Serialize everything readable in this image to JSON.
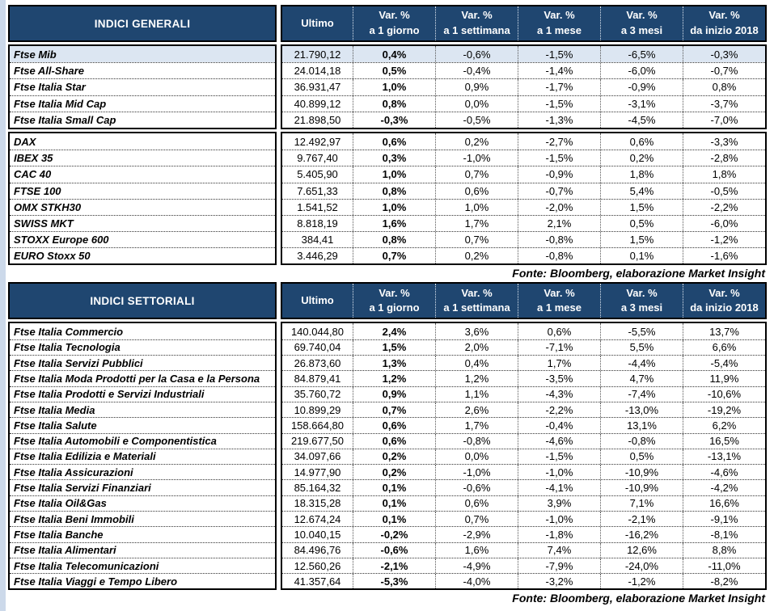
{
  "page": {
    "background": "#ffffff",
    "left_strip_color": "#ccd9ea"
  },
  "colors": {
    "header_bg": "#1f4670",
    "header_text": "#ffffff",
    "highlight_row_bg": "#dce6f2",
    "border": "#000000"
  },
  "tables": [
    {
      "key": "generali",
      "title": "INDICI GENERALI",
      "columns": [
        {
          "line1": "Ultimo",
          "line2": ""
        },
        {
          "line1": "Var. %",
          "line2": "a 1 giorno"
        },
        {
          "line1": "Var. %",
          "line2": "a 1 settimana"
        },
        {
          "line1": "Var. %",
          "line2": "a 1 mese"
        },
        {
          "line1": "Var. %",
          "line2": "a 3 mesi"
        },
        {
          "line1": "Var. %",
          "line2": "da inizio 2018"
        }
      ],
      "sections": [
        {
          "rows": [
            {
              "label": "Ftse Mib",
              "highlight": true,
              "values": [
                "21.790,12",
                "0,4%",
                "-0,6%",
                "-1,5%",
                "-6,5%",
                "-0,3%"
              ]
            },
            {
              "label": "Ftse All-Share",
              "values": [
                "24.014,18",
                "0,5%",
                "-0,4%",
                "-1,4%",
                "-6,0%",
                "-0,7%"
              ]
            },
            {
              "label": "Ftse Italia Star",
              "values": [
                "36.931,47",
                "1,0%",
                "0,9%",
                "-1,7%",
                "-0,9%",
                "0,8%"
              ]
            },
            {
              "label": "Ftse Italia Mid Cap",
              "values": [
                "40.899,12",
                "0,8%",
                "0,0%",
                "-1,5%",
                "-3,1%",
                "-3,7%"
              ]
            },
            {
              "label": "Ftse Italia Small Cap",
              "values": [
                "21.898,50",
                "-0,3%",
                "-0,5%",
                "-1,3%",
                "-4,5%",
                "-7,0%"
              ]
            }
          ]
        },
        {
          "rows": [
            {
              "label": "DAX",
              "values": [
                "12.492,97",
                "0,6%",
                "0,2%",
                "-2,7%",
                "0,6%",
                "-3,3%"
              ]
            },
            {
              "label": "IBEX 35",
              "values": [
                "9.767,40",
                "0,3%",
                "-1,0%",
                "-1,5%",
                "0,2%",
                "-2,8%"
              ]
            },
            {
              "label": "CAC 40",
              "values": [
                "5.405,90",
                "1,0%",
                "0,7%",
                "-0,9%",
                "1,8%",
                "1,8%"
              ]
            },
            {
              "label": "FTSE 100",
              "values": [
                "7.651,33",
                "0,8%",
                "0,6%",
                "-0,7%",
                "5,4%",
                "-0,5%"
              ]
            },
            {
              "label": "OMX STKH30",
              "values": [
                "1.541,52",
                "1,0%",
                "1,0%",
                "-2,0%",
                "1,5%",
                "-2,2%"
              ]
            },
            {
              "label": "SWISS MKT",
              "values": [
                "8.818,19",
                "1,6%",
                "1,7%",
                "2,1%",
                "0,5%",
                "-6,0%"
              ]
            },
            {
              "label": "STOXX Europe 600",
              "values": [
                "384,41",
                "0,8%",
                "0,7%",
                "-0,8%",
                "1,5%",
                "-1,2%"
              ]
            },
            {
              "label": "EURO Stoxx 50",
              "values": [
                "3.446,29",
                "0,7%",
                "0,2%",
                "-0,8%",
                "0,1%",
                "-1,6%"
              ]
            }
          ]
        }
      ],
      "fonte": "Fonte: Bloomberg, elaborazione Market Insight"
    },
    {
      "key": "settoriali",
      "title": "INDICI SETTORIALI",
      "columns": [
        {
          "line1": "Ultimo",
          "line2": ""
        },
        {
          "line1": "Var. %",
          "line2": "a 1 giorno"
        },
        {
          "line1": "Var. %",
          "line2": "a 1 settimana"
        },
        {
          "line1": "Var. %",
          "line2": "a 1 mese"
        },
        {
          "line1": "Var. %",
          "line2": "a 3 mesi"
        },
        {
          "line1": "Var. %",
          "line2": "da inizio 2018"
        }
      ],
      "sections": [
        {
          "rows": [
            {
              "label": "Ftse Italia Commercio",
              "values": [
                "140.044,80",
                "2,4%",
                "3,6%",
                "0,6%",
                "-5,5%",
                "13,7%"
              ]
            },
            {
              "label": "Ftse Italia Tecnologia",
              "values": [
                "69.740,04",
                "1,5%",
                "2,0%",
                "-7,1%",
                "5,5%",
                "6,6%"
              ]
            },
            {
              "label": "Ftse Italia Servizi Pubblici",
              "values": [
                "26.873,60",
                "1,3%",
                "0,4%",
                "1,7%",
                "-4,4%",
                "-5,4%"
              ]
            },
            {
              "label": "Ftse Italia Moda Prodotti per la Casa e la Persona",
              "values": [
                "84.879,41",
                "1,2%",
                "1,2%",
                "-3,5%",
                "4,7%",
                "11,9%"
              ]
            },
            {
              "label": "Ftse Italia Prodotti e Servizi Industriali",
              "values": [
                "35.760,72",
                "0,9%",
                "1,1%",
                "-4,3%",
                "-7,4%",
                "-10,6%"
              ]
            },
            {
              "label": "Ftse Italia Media",
              "values": [
                "10.899,29",
                "0,7%",
                "2,6%",
                "-2,2%",
                "-13,0%",
                "-19,2%"
              ]
            },
            {
              "label": "Ftse Italia Salute",
              "values": [
                "158.664,80",
                "0,6%",
                "1,7%",
                "-0,4%",
                "13,1%",
                "6,2%"
              ]
            },
            {
              "label": "Ftse Italia Automobili e Componentistica",
              "values": [
                "219.677,50",
                "0,6%",
                "-0,8%",
                "-4,6%",
                "-0,8%",
                "16,5%"
              ]
            },
            {
              "label": "Ftse Italia Edilizia e Materiali",
              "values": [
                "34.097,66",
                "0,2%",
                "0,0%",
                "-1,5%",
                "0,5%",
                "-13,1%"
              ]
            },
            {
              "label": "Ftse Italia Assicurazioni",
              "values": [
                "14.977,90",
                "0,2%",
                "-1,0%",
                "-1,0%",
                "-10,9%",
                "-4,6%"
              ]
            },
            {
              "label": "Ftse Italia Servizi Finanziari",
              "values": [
                "85.164,32",
                "0,1%",
                "-0,6%",
                "-4,1%",
                "-10,9%",
                "-4,2%"
              ]
            },
            {
              "label": "Ftse Italia Oil&Gas",
              "values": [
                "18.315,28",
                "0,1%",
                "0,6%",
                "3,9%",
                "7,1%",
                "16,6%"
              ]
            },
            {
              "label": "Ftse Italia Beni Immobili",
              "values": [
                "12.674,24",
                "0,1%",
                "0,7%",
                "-1,0%",
                "-2,1%",
                "-9,1%"
              ]
            },
            {
              "label": "Ftse Italia Banche",
              "values": [
                "10.040,15",
                "-0,2%",
                "-2,9%",
                "-1,8%",
                "-16,2%",
                "-8,1%"
              ]
            },
            {
              "label": "Ftse Italia Alimentari",
              "values": [
                "84.496,76",
                "-0,6%",
                "1,6%",
                "7,4%",
                "12,6%",
                "8,8%"
              ]
            },
            {
              "label": "Ftse Italia Telecomunicazioni",
              "values": [
                "12.560,26",
                "-2,1%",
                "-4,9%",
                "-7,9%",
                "-24,0%",
                "-11,0%"
              ]
            },
            {
              "label": "Ftse Italia Viaggi e Tempo Libero",
              "values": [
                "41.357,64",
                "-5,3%",
                "-4,0%",
                "-3,2%",
                "-1,2%",
                "-8,2%"
              ]
            }
          ]
        }
      ],
      "fonte": "Fonte: Bloomberg, elaborazione Market Insight"
    }
  ]
}
